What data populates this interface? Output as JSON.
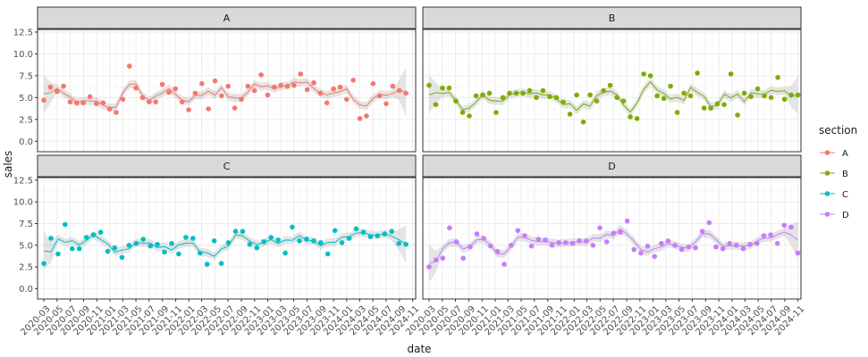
{
  "chart_data": {
    "type": "scatter",
    "xlabel": "date",
    "ylabel": "sales",
    "ylim": [
      -1.2,
      12.8
    ],
    "yticks": [
      "0.0",
      "2.5",
      "5.0",
      "7.5",
      "10.0",
      "12.5"
    ],
    "xlim": [
      "2020-02-01",
      "2024-11-15"
    ],
    "xticks": [
      "2020-03",
      "2020-05",
      "2020-07",
      "2020-09",
      "2020-11",
      "2021-01",
      "2021-03",
      "2021-05",
      "2021-07",
      "2021-09",
      "2021-11",
      "2022-01",
      "2022-03",
      "2022-05",
      "2022-07",
      "2022-09",
      "2022-11",
      "2023-01",
      "2023-03",
      "2023-05",
      "2023-07",
      "2023-09",
      "2023-11",
      "2024-01",
      "2024-03",
      "2024-05",
      "2024-07",
      "2024-09",
      "2024-11"
    ],
    "grid": true,
    "facet": "section",
    "smooth": "loess line with grey confidence band",
    "legend": {
      "title": "section",
      "position": "right"
    },
    "series": [
      {
        "name": "A",
        "color": "#F8766D",
        "values": [
          4.7,
          6.2,
          5.7,
          6.3,
          4.5,
          4.4,
          4.4,
          5.1,
          4.3,
          4.4,
          3.7,
          3.3,
          4.8,
          8.6,
          6.1,
          5.0,
          4.5,
          4.5,
          6.5,
          5.6,
          6.0,
          4.5,
          3.6,
          5.5,
          6.6,
          3.7,
          6.9,
          5.2,
          6.3,
          3.8,
          4.8,
          6.3,
          5.8,
          7.6,
          5.3,
          6.2,
          6.4,
          6.3,
          6.4,
          7.7,
          5.9,
          6.7,
          5.5,
          4.4,
          6.0,
          6.2,
          4.8,
          7.0,
          2.6,
          2.9,
          6.6,
          5.2,
          4.3,
          6.3,
          5.8,
          5.5
        ]
      },
      {
        "name": "B",
        "color": "#7CAE00",
        "values": [
          6.4,
          4.2,
          6.1,
          6.1,
          4.6,
          3.3,
          2.9,
          5.2,
          5.3,
          5.5,
          3.3,
          5.0,
          5.5,
          5.5,
          5.5,
          5.8,
          5.0,
          5.8,
          5.1,
          5.0,
          4.5,
          3.1,
          5.3,
          2.2,
          5.3,
          4.6,
          5.8,
          6.4,
          5.0,
          4.6,
          2.8,
          2.6,
          7.7,
          7.5,
          5.2,
          4.9,
          6.3,
          3.3,
          5.5,
          5.2,
          7.8,
          3.8,
          3.8,
          4.3,
          4.2,
          7.7,
          3.0,
          5.5,
          5.1,
          6.0,
          5.2,
          5.0,
          7.3,
          4.8,
          5.3,
          5.3
        ]
      },
      {
        "name": "C",
        "color": "#00BFC4",
        "values": [
          2.9,
          5.8,
          4.0,
          7.4,
          4.6,
          4.6,
          5.9,
          6.2,
          6.5,
          4.3,
          4.7,
          3.6,
          5.0,
          5.2,
          5.7,
          4.9,
          5.1,
          4.2,
          5.2,
          4.0,
          5.9,
          5.8,
          4.1,
          2.8,
          5.5,
          2.9,
          5.3,
          6.6,
          6.6,
          5.1,
          4.7,
          5.4,
          5.9,
          5.6,
          4.1,
          7.1,
          5.5,
          5.7,
          5.5,
          5.3,
          4.0,
          6.7,
          5.3,
          5.8,
          6.9,
          6.5,
          6.0,
          6.1,
          6.3,
          6.6,
          5.2,
          5.1
        ]
      },
      {
        "name": "D",
        "color": "#C77CFF",
        "values": [
          2.5,
          3.3,
          3.5,
          7.0,
          5.4,
          3.5,
          4.8,
          6.3,
          5.8,
          4.9,
          4.3,
          2.8,
          5.0,
          6.7,
          6.1,
          4.9,
          5.7,
          5.6,
          5.0,
          5.3,
          5.3,
          5.2,
          5.5,
          5.5,
          5.0,
          7.0,
          5.4,
          6.4,
          6.5,
          7.8,
          4.5,
          4.1,
          4.9,
          3.7,
          5.2,
          5.5,
          5.0,
          4.5,
          4.8,
          4.7,
          6.6,
          7.6,
          4.8,
          4.6,
          5.2,
          5.0,
          4.6,
          5.1,
          5.2,
          6.1,
          6.2,
          5.2,
          7.3,
          7.1,
          4.1
        ]
      }
    ]
  }
}
